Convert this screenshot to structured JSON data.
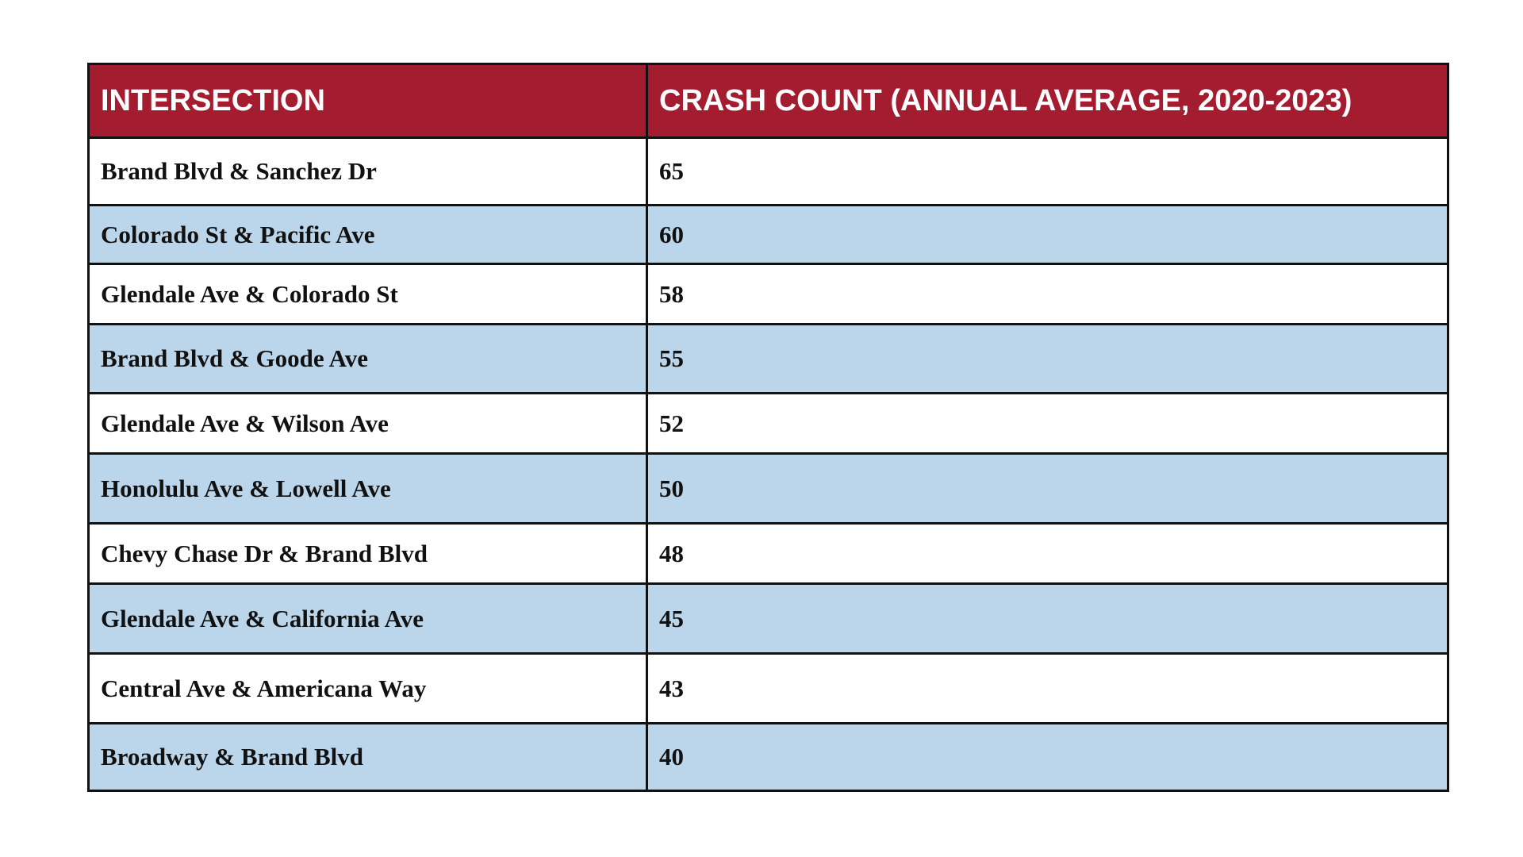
{
  "table": {
    "headers": {
      "intersection": "INTERSECTION",
      "crash_count": "CRASH COUNT (ANNUAL AVERAGE, 2020-2023)"
    },
    "colors": {
      "header_background": "#a41c30",
      "header_text": "#ffffff",
      "row_alt_background": "#bbd6ea",
      "row_background": "#ffffff",
      "border": "#111111"
    },
    "rows": [
      {
        "intersection": "Brand Blvd & Sanchez Dr",
        "crash_count": "65"
      },
      {
        "intersection": "Colorado St & Pacific Ave",
        "crash_count": "60"
      },
      {
        "intersection": "Glendale Ave & Colorado St",
        "crash_count": "58"
      },
      {
        "intersection": "Brand Blvd & Goode Ave",
        "crash_count": "55"
      },
      {
        "intersection": "Glendale Ave & Wilson Ave",
        "crash_count": "52"
      },
      {
        "intersection": "Honolulu Ave & Lowell Ave",
        "crash_count": "50"
      },
      {
        "intersection": "Chevy Chase Dr & Brand Blvd",
        "crash_count": "48"
      },
      {
        "intersection": "Glendale Ave & California Ave",
        "crash_count": "45"
      },
      {
        "intersection": "Central Ave & Americana Way",
        "crash_count": "43"
      },
      {
        "intersection": "Broadway & Brand Blvd",
        "crash_count": "40"
      }
    ]
  }
}
